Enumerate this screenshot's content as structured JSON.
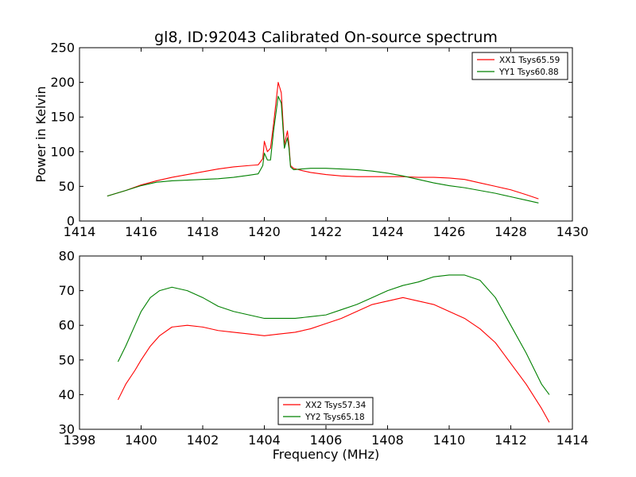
{
  "chart_data": [
    {
      "type": "line",
      "title": "gl8, ID:92043 Calibrated On-source spectrum",
      "xlabel": "",
      "ylabel": "Power in Kelvin",
      "xlim": [
        1414,
        1430
      ],
      "ylim": [
        0,
        250
      ],
      "xticks": [
        "1414",
        "1416",
        "1418",
        "1420",
        "1422",
        "1424",
        "1426",
        "1428",
        "1430"
      ],
      "yticks": [
        "0",
        "50",
        "100",
        "150",
        "200",
        "250"
      ],
      "legend_position": "top-right",
      "series": [
        {
          "name": "XX1 Tsys65.59",
          "color": "#ff0000",
          "x": [
            1414.9,
            1415.5,
            1416.0,
            1416.5,
            1417.0,
            1417.5,
            1418.0,
            1418.5,
            1419.0,
            1419.5,
            1419.8,
            1419.95,
            1420.0,
            1420.1,
            1420.2,
            1420.3,
            1420.45,
            1420.55,
            1420.65,
            1420.75,
            1420.8,
            1420.85,
            1420.95,
            1421.2,
            1421.5,
            1422.0,
            1422.5,
            1423.0,
            1423.5,
            1424.0,
            1424.5,
            1425.0,
            1425.5,
            1426.0,
            1426.5,
            1427.0,
            1427.5,
            1428.0,
            1428.5,
            1428.9
          ],
          "y": [
            36,
            44,
            52,
            58,
            63,
            67,
            71,
            75,
            78,
            80,
            81,
            90,
            115,
            100,
            105,
            140,
            200,
            185,
            110,
            130,
            110,
            80,
            76,
            73,
            70,
            67,
            65,
            64,
            64,
            64,
            64,
            63,
            63,
            62,
            60,
            55,
            50,
            45,
            38,
            32
          ]
        },
        {
          "name": "YY1 Tsys60.88",
          "color": "#008000",
          "x": [
            1414.9,
            1415.5,
            1416.0,
            1416.5,
            1417.0,
            1417.5,
            1418.0,
            1418.5,
            1419.0,
            1419.5,
            1419.8,
            1419.95,
            1420.0,
            1420.1,
            1420.2,
            1420.3,
            1420.45,
            1420.55,
            1420.65,
            1420.75,
            1420.8,
            1420.85,
            1420.95,
            1421.2,
            1421.5,
            1422.0,
            1422.5,
            1423.0,
            1423.5,
            1424.0,
            1424.5,
            1425.0,
            1425.5,
            1426.0,
            1426.5,
            1427.0,
            1427.5,
            1428.0,
            1428.5,
            1428.9
          ],
          "y": [
            36,
            44,
            51,
            56,
            58,
            59,
            60,
            61,
            63,
            66,
            68,
            80,
            98,
            88,
            88,
            130,
            180,
            170,
            105,
            120,
            105,
            78,
            74,
            75,
            76,
            76,
            75,
            74,
            72,
            69,
            65,
            60,
            55,
            51,
            48,
            44,
            40,
            35,
            30,
            26
          ]
        }
      ]
    },
    {
      "type": "line",
      "title": "",
      "xlabel": "Frequency (MHz)",
      "ylabel": "",
      "xlim": [
        1398,
        1414
      ],
      "ylim": [
        30,
        80
      ],
      "xticks": [
        "1398",
        "1400",
        "1402",
        "1404",
        "1406",
        "1408",
        "1410",
        "1412",
        "1414"
      ],
      "yticks": [
        "30",
        "40",
        "50",
        "60",
        "70",
        "80"
      ],
      "legend_position": "lower-center",
      "series": [
        {
          "name": "XX2 Tsys57.34",
          "color": "#ff0000",
          "x": [
            1399.25,
            1399.5,
            1399.8,
            1400.0,
            1400.3,
            1400.6,
            1401.0,
            1401.5,
            1402.0,
            1402.5,
            1403.0,
            1403.5,
            1404.0,
            1404.5,
            1405.0,
            1405.5,
            1406.0,
            1406.5,
            1407.0,
            1407.5,
            1408.0,
            1408.5,
            1409.0,
            1409.5,
            1410.0,
            1410.5,
            1411.0,
            1411.5,
            1412.0,
            1412.5,
            1413.0,
            1413.25
          ],
          "y": [
            38.5,
            43,
            47,
            50,
            54,
            57,
            59.5,
            60,
            59.5,
            58.5,
            58,
            57.5,
            57,
            57.5,
            58,
            59,
            60.5,
            62,
            64,
            66,
            67,
            68,
            67,
            66,
            64,
            62,
            59,
            55,
            49,
            43,
            36,
            32
          ]
        },
        {
          "name": "YY2 Tsys65.18",
          "color": "#008000",
          "x": [
            1399.25,
            1399.5,
            1399.8,
            1400.0,
            1400.3,
            1400.6,
            1401.0,
            1401.5,
            1402.0,
            1402.5,
            1403.0,
            1403.5,
            1404.0,
            1404.5,
            1405.0,
            1405.5,
            1406.0,
            1406.5,
            1407.0,
            1407.5,
            1408.0,
            1408.5,
            1409.0,
            1409.5,
            1410.0,
            1410.5,
            1411.0,
            1411.5,
            1412.0,
            1412.5,
            1413.0,
            1413.25
          ],
          "y": [
            49.5,
            54,
            60,
            64,
            68,
            70,
            71,
            70,
            68,
            65.5,
            64,
            63,
            62,
            62,
            62,
            62.5,
            63,
            64.5,
            66,
            68,
            70,
            71.5,
            72.5,
            74,
            74.5,
            74.5,
            73,
            68,
            60,
            52,
            43,
            40
          ]
        }
      ]
    }
  ]
}
